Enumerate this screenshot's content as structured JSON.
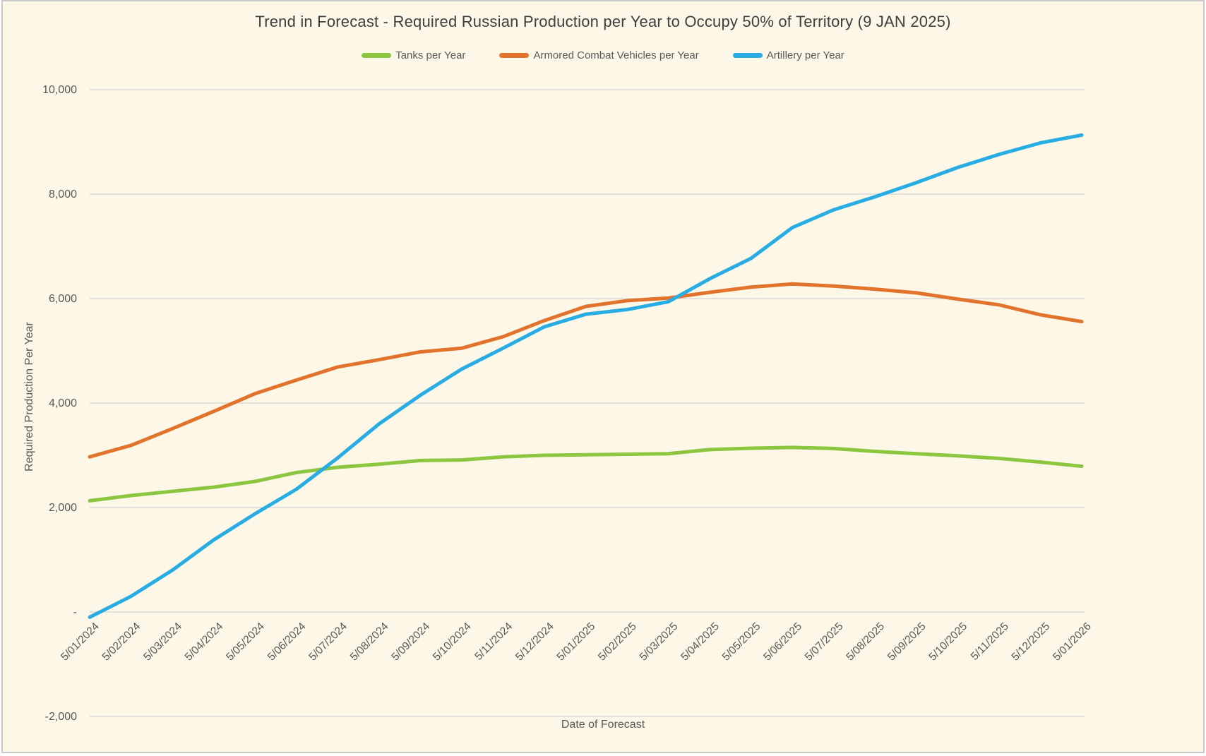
{
  "chart_data": {
    "type": "line",
    "title": "Trend in Forecast - Required Russian Production per Year to Occupy 50% of Territory (9 JAN 2025)",
    "xlabel": "Date of Forecast",
    "ylabel": "Required Production Per Year",
    "grid": "horizontal",
    "legend_position": "top",
    "ylim": [
      -2000,
      10000
    ],
    "y_ticks": [
      {
        "value": 10000,
        "label": "10,000"
      },
      {
        "value": 8000,
        "label": "8,000"
      },
      {
        "value": 6000,
        "label": "6,000"
      },
      {
        "value": 4000,
        "label": "4,000"
      },
      {
        "value": 2000,
        "label": "2,000"
      },
      {
        "value": 0,
        "label": "-"
      },
      {
        "value": -2000,
        "label": "-2,000"
      }
    ],
    "x": [
      "5/01/2024",
      "5/02/2024",
      "5/03/2024",
      "5/04/2024",
      "5/05/2024",
      "5/06/2024",
      "5/07/2024",
      "5/08/2024",
      "5/09/2024",
      "5/10/2024",
      "5/11/2024",
      "5/12/2024",
      "5/01/2025",
      "5/02/2025",
      "5/03/2025",
      "5/04/2025",
      "5/05/2025",
      "5/06/2025",
      "5/07/2025",
      "5/08/2025",
      "5/09/2025",
      "5/10/2025",
      "5/11/2025",
      "5/12/2025",
      "5/01/2026"
    ],
    "series": [
      {
        "name": "Tanks per Year",
        "color": "#8CC640",
        "values": [
          2130,
          2230,
          2310,
          2390,
          2500,
          2670,
          2770,
          2830,
          2900,
          2910,
          2970,
          3000,
          3010,
          3020,
          3030,
          3110,
          3135,
          3150,
          3130,
          3075,
          3030,
          2990,
          2940,
          2870,
          2790
        ]
      },
      {
        "name": "Armored Combat Vehicles per Year",
        "color": "#E1732C",
        "values": [
          2970,
          3190,
          3510,
          3840,
          4180,
          4440,
          4690,
          4830,
          4980,
          5050,
          5270,
          5580,
          5850,
          5960,
          6010,
          6120,
          6220,
          6280,
          6240,
          6180,
          6110,
          5990,
          5880,
          5690,
          5560
        ]
      },
      {
        "name": "Artillery per Year",
        "color": "#28ACE4",
        "values": [
          -100,
          300,
          800,
          1380,
          1880,
          2350,
          2950,
          3600,
          4150,
          4650,
          5050,
          5460,
          5700,
          5790,
          5940,
          6380,
          6770,
          7360,
          7700,
          7950,
          8220,
          8510,
          8760,
          8980,
          9130
        ]
      }
    ],
    "style": {
      "background": "#FCF7E6",
      "border": "#C9C9C9",
      "gridline": "#D9D9D9",
      "tick_text": "#595959",
      "title_text": "#3F3F3F",
      "line_width": 5
    }
  }
}
